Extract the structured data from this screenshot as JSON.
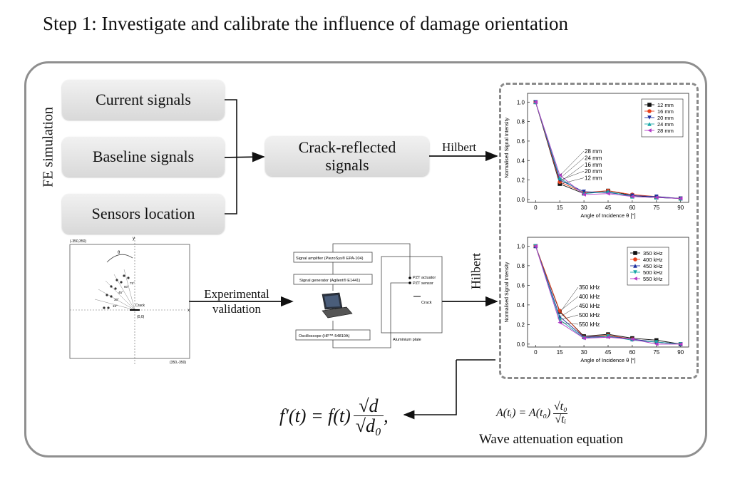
{
  "title": "Step 1: Investigate and calibrate the influence of damage orientation",
  "fe_label": "FE simulation",
  "boxes": {
    "current": "Current signals",
    "baseline": "Baseline signals",
    "sensors": "Sensors location",
    "crack_line1": "Crack-reflected",
    "crack_line2": "signals"
  },
  "arrows": {
    "hilbert_top": "Hilbert",
    "hilbert_side": "Hilbert",
    "exp_line1": "Experimental",
    "exp_line2": "validation"
  },
  "equations": {
    "main_lhs": "f′(t) = f(t)",
    "main_num": "√d",
    "main_den": "√d₀",
    "main_comma": ",",
    "atten_lhs": "A(tᵢ) = A(t₀)",
    "atten_num": "√t₀",
    "atten_den": "√tᵢ",
    "atten_caption": "Wave attenuation equation"
  },
  "sensor_layout": {
    "corner_top_left": "(-350,350)",
    "corner_bottom_right": "(350,-350)",
    "x_axis": "x",
    "y_axis": "y",
    "crack": "Crack",
    "origin": "(0,0)",
    "theta": "θ",
    "angles": [
      "15°",
      "30°",
      "45°",
      "60°",
      "75°"
    ]
  },
  "experiment": {
    "amplifier": "Signal amplifier (PiezoSys® EPA-104)",
    "generator": "Signal generator (Agilent® E1441)",
    "oscilloscope": "Oscilloscope (HP™-54810A)",
    "actuator": "PZT actuator",
    "sensor": "PZT sensor",
    "crack": "Crack",
    "plate": "Aluminium plate",
    "laptop_icon": "laptop-icon"
  },
  "chart_data": [
    {
      "type": "line",
      "xlabel": "Angle of Incidence θ [°]",
      "ylabel": "Normalised Signal Intensity",
      "x": [
        0,
        15,
        30,
        45,
        60,
        75,
        90
      ],
      "xticks": [
        "0",
        "15",
        "30",
        "45",
        "60",
        "75",
        "90"
      ],
      "yticks": [
        "0.0",
        "0.2",
        "0.4",
        "0.6",
        "0.8",
        "1.0"
      ],
      "xlim": [
        -5,
        95
      ],
      "ylim": [
        -0.03,
        1.09
      ],
      "legend_position": "top-right",
      "annotation_labels": [
        "28 mm",
        "24 mm",
        "16 mm",
        "20 mm",
        "12 mm"
      ],
      "series": [
        {
          "name": "12 mm",
          "color": "#111111",
          "marker": "square",
          "values": [
            1.0,
            0.16,
            0.06,
            0.09,
            0.04,
            0.02,
            0.01
          ]
        },
        {
          "name": "16 mm",
          "color": "#e8411c",
          "marker": "circle",
          "values": [
            1.0,
            0.18,
            0.07,
            0.09,
            0.05,
            0.03,
            0.01
          ]
        },
        {
          "name": "20 mm",
          "color": "#1d2f9e",
          "marker": "tri-down",
          "values": [
            1.0,
            0.2,
            0.08,
            0.07,
            0.04,
            0.03,
            0.01
          ]
        },
        {
          "name": "24 mm",
          "color": "#18a7a7",
          "marker": "tri-up",
          "values": [
            1.0,
            0.22,
            0.06,
            0.08,
            0.03,
            0.02,
            0.01
          ]
        },
        {
          "name": "28 mm",
          "color": "#b33bc7",
          "marker": "tri-left",
          "values": [
            1.0,
            0.25,
            0.05,
            0.06,
            0.03,
            0.02,
            0.01
          ]
        }
      ]
    },
    {
      "type": "line",
      "xlabel": "Angle of Incidence θ [°]",
      "ylabel": "Normalised Signal Intensity",
      "x": [
        0,
        15,
        30,
        45,
        60,
        75,
        90
      ],
      "xticks": [
        "0",
        "15",
        "30",
        "45",
        "60",
        "75",
        "90"
      ],
      "yticks": [
        "0.0",
        "0.2",
        "0.4",
        "0.6",
        "0.8",
        "1.0"
      ],
      "xlim": [
        -5,
        95
      ],
      "ylim": [
        -0.03,
        1.09
      ],
      "legend_position": "top-right",
      "annotation_labels": [
        "350 kHz",
        "400 kHz",
        "450 kHz",
        "500 kHz",
        "550 kHz"
      ],
      "series": [
        {
          "name": "350 kHz",
          "color": "#111111",
          "marker": "square",
          "values": [
            1.0,
            0.33,
            0.08,
            0.1,
            0.06,
            0.04,
            0.0
          ]
        },
        {
          "name": "400 kHz",
          "color": "#e8411c",
          "marker": "circle",
          "values": [
            1.0,
            0.34,
            0.07,
            0.09,
            0.05,
            0.02,
            0.0
          ]
        },
        {
          "name": "450 kHz",
          "color": "#1d2f9e",
          "marker": "tri-up",
          "values": [
            1.0,
            0.28,
            0.07,
            0.08,
            0.05,
            0.02,
            0.0
          ]
        },
        {
          "name": "500 kHz",
          "color": "#18a7a7",
          "marker": "tri-down",
          "values": [
            1.0,
            0.25,
            0.06,
            0.08,
            0.04,
            0.02,
            0.0
          ]
        },
        {
          "name": "550 kHz",
          "color": "#b33bc7",
          "marker": "tri-left",
          "values": [
            1.0,
            0.22,
            0.06,
            0.07,
            0.05,
            0.0,
            0.0
          ]
        }
      ]
    }
  ]
}
